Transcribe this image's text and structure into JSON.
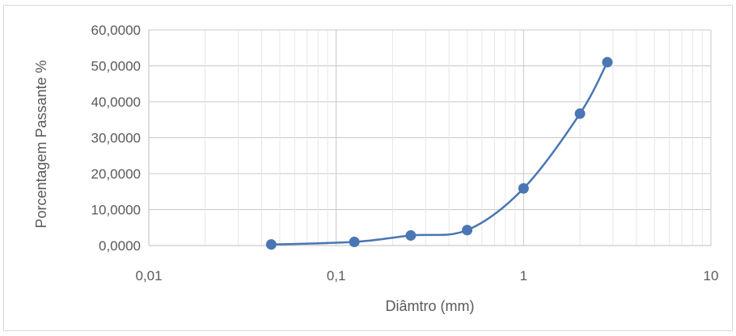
{
  "chart_data": {
    "type": "scatter",
    "title": "",
    "xlabel": "Diâmtro (mm)",
    "ylabel": "Porcentagem Passante %",
    "x_scale": "log",
    "xlim": [
      0.01,
      10
    ],
    "ylim": [
      0,
      60
    ],
    "x_ticks": [
      "0,01",
      "0,1",
      "1",
      "10"
    ],
    "y_ticks": [
      "0,0000",
      "10,0000",
      "20,0000",
      "30,0000",
      "40,0000",
      "50,0000",
      "60,0000"
    ],
    "grid": true,
    "legend": "none",
    "colors": {
      "series": "#4a76b4",
      "grid_major": "#c8c8c8",
      "grid_minor": "#e6e6e6",
      "axis": "#bfbfbf",
      "text": "#595959"
    },
    "series": [
      {
        "x": [
          0.045,
          0.125,
          0.25,
          0.5,
          1.0,
          2.0,
          2.8
        ],
        "y": [
          0.3,
          1.0,
          2.8,
          4.3,
          15.9,
          36.7,
          51.0
        ],
        "smooth": true,
        "marker": "circle"
      }
    ]
  }
}
